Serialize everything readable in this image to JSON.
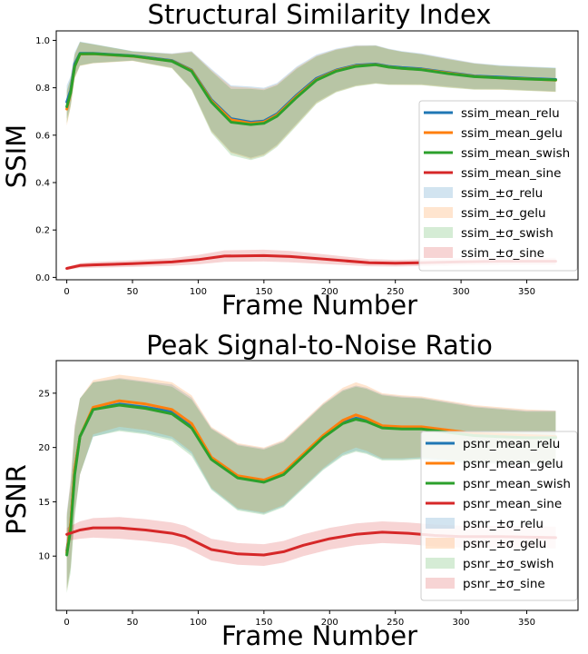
{
  "chart_data": [
    {
      "type": "line",
      "title": "Structural Similarity Index",
      "xlabel": "Frame Number",
      "ylabel": "SSIM",
      "xlim": [
        -8,
        389
      ],
      "ylim": [
        -0.01,
        1.04
      ],
      "xticks": [
        0,
        50,
        100,
        150,
        200,
        250,
        300,
        350
      ],
      "yticks": [
        0.0,
        0.2,
        0.4,
        0.6,
        0.8,
        1.0
      ],
      "ytick_labels": [
        "0.0",
        "0.2",
        "0.4",
        "0.6",
        "0.8",
        "1.0"
      ],
      "legend_position": "center-right",
      "series": [
        {
          "name": "ssim_mean_relu",
          "color": "#1f77b4",
          "x": [
            0,
            3,
            6,
            10,
            20,
            50,
            80,
            95,
            110,
            125,
            140,
            150,
            160,
            175,
            190,
            205,
            220,
            235,
            245,
            255,
            270,
            290,
            310,
            330,
            350,
            372
          ],
          "y": [
            0.74,
            0.79,
            0.9,
            0.945,
            0.945,
            0.935,
            0.915,
            0.875,
            0.75,
            0.67,
            0.655,
            0.66,
            0.69,
            0.77,
            0.84,
            0.875,
            0.895,
            0.9,
            0.89,
            0.885,
            0.88,
            0.865,
            0.85,
            0.845,
            0.84,
            0.835
          ]
        },
        {
          "name": "ssim_mean_gelu",
          "color": "#ff7f0e",
          "x": [
            0,
            3,
            6,
            10,
            20,
            50,
            80,
            95,
            110,
            125,
            140,
            150,
            160,
            175,
            190,
            205,
            220,
            235,
            245,
            255,
            270,
            290,
            310,
            330,
            350,
            372
          ],
          "y": [
            0.71,
            0.78,
            0.89,
            0.942,
            0.943,
            0.933,
            0.913,
            0.873,
            0.745,
            0.665,
            0.65,
            0.655,
            0.685,
            0.765,
            0.835,
            0.872,
            0.892,
            0.898,
            0.888,
            0.882,
            0.877,
            0.862,
            0.848,
            0.842,
            0.838,
            0.832
          ]
        },
        {
          "name": "ssim_mean_swish",
          "color": "#2ca02c",
          "x": [
            0,
            3,
            6,
            10,
            20,
            50,
            80,
            95,
            110,
            125,
            140,
            150,
            160,
            175,
            190,
            205,
            220,
            235,
            245,
            255,
            270,
            290,
            310,
            330,
            350,
            372
          ],
          "y": [
            0.72,
            0.78,
            0.89,
            0.943,
            0.944,
            0.934,
            0.912,
            0.87,
            0.74,
            0.655,
            0.645,
            0.65,
            0.68,
            0.76,
            0.832,
            0.87,
            0.89,
            0.897,
            0.887,
            0.882,
            0.876,
            0.86,
            0.847,
            0.842,
            0.837,
            0.833
          ]
        },
        {
          "name": "ssim_mean_sine",
          "color": "#d62728",
          "x": [
            0,
            10,
            20,
            50,
            80,
            100,
            120,
            150,
            170,
            200,
            230,
            250,
            270,
            300,
            330,
            372
          ],
          "y": [
            0.038,
            0.05,
            0.053,
            0.058,
            0.065,
            0.075,
            0.09,
            0.092,
            0.088,
            0.075,
            0.062,
            0.06,
            0.062,
            0.066,
            0.068,
            0.068
          ]
        }
      ],
      "bands": [
        {
          "name": "ssim_±σ_relu",
          "color": "#1f77b4",
          "width": [
            0.07,
            0.06,
            0.05,
            0.05,
            0.04,
            0.02,
            0.03,
            0.08,
            0.13,
            0.14,
            0.15,
            0.14,
            0.13,
            0.12,
            0.1,
            0.09,
            0.085,
            0.08,
            0.075,
            0.07,
            0.065,
            0.06,
            0.055,
            0.05,
            0.05,
            0.05
          ]
        },
        {
          "name": "ssim_±σ_gelu",
          "color": "#ff7f0e",
          "width": [
            0.07,
            0.06,
            0.05,
            0.05,
            0.04,
            0.02,
            0.03,
            0.08,
            0.13,
            0.14,
            0.15,
            0.14,
            0.13,
            0.12,
            0.1,
            0.09,
            0.085,
            0.08,
            0.075,
            0.07,
            0.065,
            0.06,
            0.055,
            0.05,
            0.05,
            0.05
          ]
        },
        {
          "name": "ssim_±σ_swish",
          "color": "#2ca02c",
          "width": [
            0.07,
            0.06,
            0.05,
            0.05,
            0.04,
            0.02,
            0.03,
            0.08,
            0.13,
            0.14,
            0.15,
            0.14,
            0.13,
            0.12,
            0.1,
            0.09,
            0.085,
            0.08,
            0.075,
            0.07,
            0.065,
            0.06,
            0.055,
            0.05,
            0.05,
            0.05
          ]
        },
        {
          "name": "ssim_±σ_sine",
          "color": "#d62728",
          "width": [
            0.006,
            0.01,
            0.012,
            0.014,
            0.016,
            0.02,
            0.024,
            0.025,
            0.024,
            0.02,
            0.015,
            0.014,
            0.014,
            0.015,
            0.015,
            0.015
          ]
        }
      ]
    },
    {
      "type": "line",
      "title": "Peak Signal-to-Noise Ratio",
      "xlabel": "Frame Number",
      "ylabel": "PSNR",
      "xlim": [
        -8,
        389
      ],
      "ylim": [
        5,
        28
      ],
      "xticks": [
        0,
        50,
        100,
        150,
        200,
        250,
        300,
        350
      ],
      "yticks": [
        10,
        15,
        20,
        25
      ],
      "ytick_labels": [
        "10",
        "15",
        "20",
        "25"
      ],
      "legend_position": "lower-right",
      "series": [
        {
          "name": "psnr_mean_relu",
          "color": "#1f77b4",
          "x": [
            0,
            3,
            6,
            10,
            20,
            40,
            60,
            80,
            95,
            110,
            130,
            150,
            165,
            180,
            195,
            210,
            220,
            228,
            240,
            255,
            270,
            290,
            310,
            330,
            350,
            372
          ],
          "y": [
            10.5,
            13,
            18,
            21,
            23.5,
            24.0,
            23.7,
            23.3,
            22.0,
            19.0,
            17.3,
            16.9,
            17.6,
            19.3,
            21.0,
            22.3,
            22.7,
            22.5,
            21.9,
            21.8,
            21.8,
            21.5,
            21.2,
            21.1,
            21.0,
            21.0
          ]
        },
        {
          "name": "psnr_mean_gelu",
          "color": "#ff7f0e",
          "x": [
            0,
            3,
            6,
            10,
            20,
            40,
            60,
            80,
            95,
            110,
            130,
            150,
            165,
            180,
            195,
            210,
            220,
            228,
            240,
            255,
            270,
            290,
            310,
            330,
            350,
            372
          ],
          "y": [
            10.3,
            13,
            18,
            21,
            23.7,
            24.3,
            24.0,
            23.5,
            22.2,
            19.1,
            17.4,
            17.0,
            17.7,
            19.4,
            21.1,
            22.5,
            23.0,
            22.7,
            22.0,
            21.9,
            21.9,
            21.6,
            21.3,
            21.2,
            21.1,
            21.0
          ]
        },
        {
          "name": "psnr_mean_swish",
          "color": "#2ca02c",
          "x": [
            0,
            3,
            6,
            10,
            20,
            40,
            60,
            80,
            95,
            110,
            130,
            150,
            165,
            180,
            195,
            210,
            220,
            228,
            240,
            255,
            270,
            290,
            310,
            330,
            350,
            372
          ],
          "y": [
            10.1,
            12.5,
            17.5,
            21,
            23.5,
            23.9,
            23.6,
            23.1,
            21.8,
            18.9,
            17.2,
            16.8,
            17.5,
            19.2,
            20.9,
            22.2,
            22.6,
            22.4,
            21.8,
            21.7,
            21.7,
            21.4,
            21.1,
            21.0,
            20.9,
            20.9
          ]
        },
        {
          "name": "psnr_mean_sine",
          "color": "#d62728",
          "x": [
            0,
            10,
            20,
            40,
            60,
            80,
            90,
            100,
            110,
            130,
            150,
            165,
            180,
            200,
            220,
            240,
            260,
            280,
            300,
            330,
            372
          ],
          "y": [
            12.0,
            12.4,
            12.6,
            12.6,
            12.4,
            12.1,
            11.8,
            11.2,
            10.6,
            10.2,
            10.1,
            10.4,
            11.0,
            11.6,
            12.0,
            12.2,
            12.1,
            11.9,
            11.8,
            11.8,
            11.7
          ]
        }
      ],
      "bands": [
        {
          "name": "psnr_±σ_relu",
          "color": "#1f77b4",
          "width": [
            3.5,
            4,
            4,
            3.5,
            2.5,
            2.4,
            2.4,
            2.5,
            2.6,
            2.8,
            3.0,
            3.0,
            3.0,
            3.0,
            3.0,
            3.0,
            3.0,
            3.0,
            3.0,
            2.9,
            2.8,
            2.7,
            2.6,
            2.5,
            2.4,
            2.4
          ]
        },
        {
          "name": "psnr_±σ_gelu",
          "color": "#ff7f0e",
          "width": [
            3.5,
            4,
            4,
            3.5,
            2.5,
            2.4,
            2.4,
            2.5,
            2.6,
            2.8,
            3.0,
            3.0,
            3.0,
            3.0,
            3.0,
            3.0,
            3.0,
            3.0,
            3.0,
            2.9,
            2.8,
            2.7,
            2.6,
            2.5,
            2.4,
            2.4
          ]
        },
        {
          "name": "psnr_±σ_swish",
          "color": "#2ca02c",
          "width": [
            3.5,
            4,
            4,
            3.5,
            2.5,
            2.4,
            2.4,
            2.5,
            2.6,
            2.8,
            3.0,
            3.0,
            3.0,
            3.0,
            3.0,
            3.0,
            3.0,
            3.0,
            3.0,
            2.9,
            2.8,
            2.7,
            2.6,
            2.5,
            2.4,
            2.4
          ]
        },
        {
          "name": "psnr_±σ_sine",
          "color": "#d62728",
          "width": [
            0.6,
            0.8,
            0.9,
            1.0,
            1.0,
            1.0,
            1.0,
            1.0,
            1.0,
            1.0,
            1.0,
            1.0,
            1.0,
            1.0,
            1.0,
            1.0,
            1.0,
            1.0,
            1.0,
            1.0,
            1.0
          ]
        }
      ]
    }
  ]
}
